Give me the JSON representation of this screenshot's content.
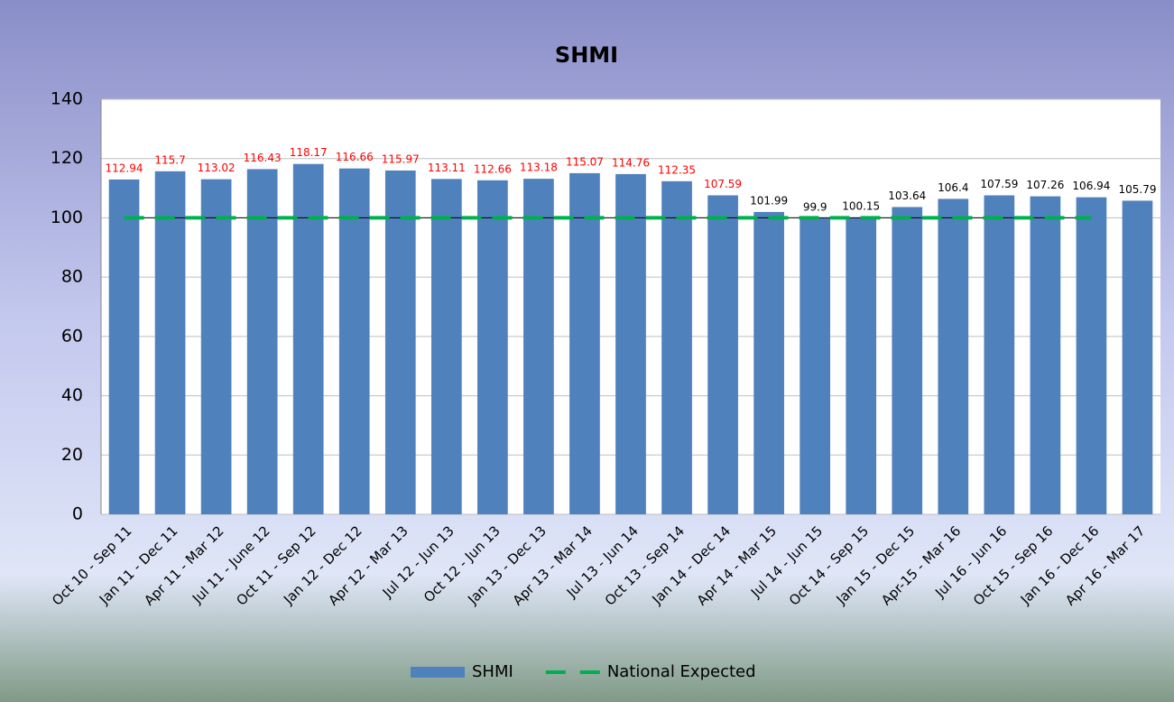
{
  "chart_data": {
    "type": "bar",
    "title": "SHMI",
    "categories": [
      "Oct 10 - Sep 11",
      "Jan 11 - Dec 11",
      "Apr 11 - Mar 12",
      "Jul 11 - June 12",
      "Oct 11 - Sep 12",
      "Jan 12 - Dec 12",
      "Apr 12 - Mar 13",
      "Jul 12 - Jun 13",
      "Oct 12 - Jun 13",
      "Jan 13 - Dec 13",
      "Apr 13 - Mar 14",
      "Jul 13 - Jun 14",
      "Oct 13 - Sep 14",
      "Jan 14 - Dec 14",
      "Apr 14 - Mar 15",
      "Jul 14 - Jun 15",
      "Oct 14 - Sep 15",
      "Jan 15 - Dec 15",
      "Apr-15 - Mar 16",
      "Jul 16 - Jun 16",
      "Oct 15 - Sep 16",
      "Jan 16 - Dec 16",
      "Apr 16 - Mar 17"
    ],
    "series": [
      {
        "name": "SHMI",
        "type": "bar",
        "color": "#4f81bd",
        "values": [
          112.94,
          115.7,
          113.02,
          116.43,
          118.17,
          116.66,
          115.97,
          113.11,
          112.66,
          113.18,
          115.07,
          114.76,
          112.35,
          107.59,
          101.99,
          99.9,
          100.15,
          103.64,
          106.4,
          107.59,
          107.26,
          106.94,
          105.79
        ],
        "value_label_colors": [
          "#ff0000",
          "#ff0000",
          "#ff0000",
          "#ff0000",
          "#ff0000",
          "#ff0000",
          "#ff0000",
          "#ff0000",
          "#ff0000",
          "#ff0000",
          "#ff0000",
          "#ff0000",
          "#ff0000",
          "#ff0000",
          "#000000",
          "#000000",
          "#000000",
          "#000000",
          "#000000",
          "#000000",
          "#000000",
          "#000000",
          "#000000"
        ]
      },
      {
        "name": "National Expected",
        "type": "line",
        "color": "#00b050",
        "dashed": true,
        "values": [
          100,
          100,
          100,
          100,
          100,
          100,
          100,
          100,
          100,
          100,
          100,
          100,
          100,
          100,
          100,
          100,
          100,
          100,
          100,
          100,
          100,
          100,
          null
        ]
      }
    ],
    "ylim": [
      0,
      140
    ],
    "yticks": [
      0,
      20,
      40,
      60,
      80,
      100,
      120,
      140
    ],
    "grid": true,
    "legend": "bottom"
  }
}
